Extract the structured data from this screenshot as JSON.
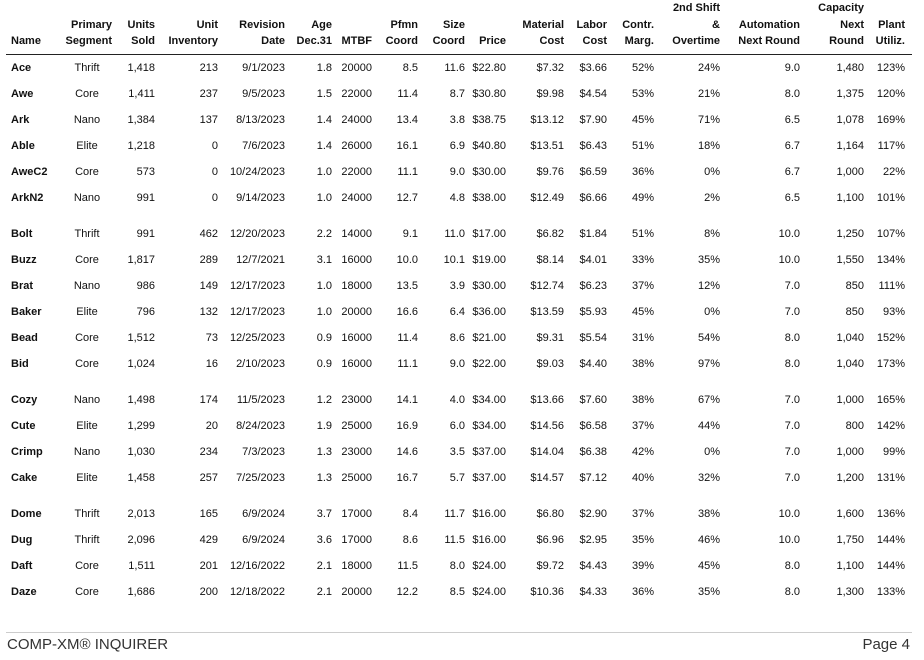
{
  "table": {
    "headers": [
      [
        "Name"
      ],
      [
        "Primary",
        "Segment"
      ],
      [
        "Units",
        "Sold"
      ],
      [
        "Unit",
        "Inventory"
      ],
      [
        "Revision",
        "Date"
      ],
      [
        "Age",
        "Dec.31"
      ],
      [
        "MTBF"
      ],
      [
        "Pfmn",
        "Coord"
      ],
      [
        "Size",
        "Coord"
      ],
      [
        "Price"
      ],
      [
        "Material",
        "Cost"
      ],
      [
        "Labor",
        "Cost"
      ],
      [
        "Contr.",
        "Marg."
      ],
      [
        "2nd Shift",
        "&",
        "Overtime"
      ],
      [
        "Automation",
        "Next Round"
      ],
      [
        "Capacity",
        "Next",
        "Round"
      ],
      [
        "Plant",
        "Utiliz."
      ]
    ],
    "groups": [
      {
        "rows": [
          [
            "Ace",
            "Thrift",
            "1,418",
            "213",
            "9/1/2023",
            "1.8",
            "20000",
            "8.5",
            "11.6",
            "$22.80",
            "$7.32",
            "$3.66",
            "52%",
            "24%",
            "9.0",
            "1,480",
            "123%"
          ],
          [
            "Awe",
            "Core",
            "1,411",
            "237",
            "9/5/2023",
            "1.5",
            "22000",
            "11.4",
            "8.7",
            "$30.80",
            "$9.98",
            "$4.54",
            "53%",
            "21%",
            "8.0",
            "1,375",
            "120%"
          ],
          [
            "Ark",
            "Nano",
            "1,384",
            "137",
            "8/13/2023",
            "1.4",
            "24000",
            "13.4",
            "3.8",
            "$38.75",
            "$13.12",
            "$7.90",
            "45%",
            "71%",
            "6.5",
            "1,078",
            "169%"
          ],
          [
            "Able",
            "Elite",
            "1,218",
            "0",
            "7/6/2023",
            "1.4",
            "26000",
            "16.1",
            "6.9",
            "$40.80",
            "$13.51",
            "$6.43",
            "51%",
            "18%",
            "6.7",
            "1,164",
            "117%"
          ],
          [
            "AweC2",
            "Core",
            "573",
            "0",
            "10/24/2023",
            "1.0",
            "22000",
            "11.1",
            "9.0",
            "$30.00",
            "$9.76",
            "$6.59",
            "36%",
            "0%",
            "6.7",
            "1,000",
            "22%"
          ],
          [
            "ArkN2",
            "Nano",
            "991",
            "0",
            "9/14/2023",
            "1.0",
            "24000",
            "12.7",
            "4.8",
            "$38.00",
            "$12.49",
            "$6.66",
            "49%",
            "2%",
            "6.5",
            "1,100",
            "101%"
          ]
        ]
      },
      {
        "rows": [
          [
            "Bolt",
            "Thrift",
            "991",
            "462",
            "12/20/2023",
            "2.2",
            "14000",
            "9.1",
            "11.0",
            "$17.00",
            "$6.82",
            "$1.84",
            "51%",
            "8%",
            "10.0",
            "1,250",
            "107%"
          ],
          [
            "Buzz",
            "Core",
            "1,817",
            "289",
            "12/7/2021",
            "3.1",
            "16000",
            "10.0",
            "10.1",
            "$19.00",
            "$8.14",
            "$4.01",
            "33%",
            "35%",
            "10.0",
            "1,550",
            "134%"
          ],
          [
            "Brat",
            "Nano",
            "986",
            "149",
            "12/17/2023",
            "1.0",
            "18000",
            "13.5",
            "3.9",
            "$30.00",
            "$12.74",
            "$6.23",
            "37%",
            "12%",
            "7.0",
            "850",
            "111%"
          ],
          [
            "Baker",
            "Elite",
            "796",
            "132",
            "12/17/2023",
            "1.0",
            "20000",
            "16.6",
            "6.4",
            "$36.00",
            "$13.59",
            "$5.93",
            "45%",
            "0%",
            "7.0",
            "850",
            "93%"
          ],
          [
            "Bead",
            "Core",
            "1,512",
            "73",
            "12/25/2023",
            "0.9",
            "16000",
            "11.4",
            "8.6",
            "$21.00",
            "$9.31",
            "$5.54",
            "31%",
            "54%",
            "8.0",
            "1,040",
            "152%"
          ],
          [
            "Bid",
            "Core",
            "1,024",
            "16",
            "2/10/2023",
            "0.9",
            "16000",
            "11.1",
            "9.0",
            "$22.00",
            "$9.03",
            "$4.40",
            "38%",
            "97%",
            "8.0",
            "1,040",
            "173%"
          ]
        ]
      },
      {
        "rows": [
          [
            "Cozy",
            "Nano",
            "1,498",
            "174",
            "11/5/2023",
            "1.2",
            "23000",
            "14.1",
            "4.0",
            "$34.00",
            "$13.66",
            "$7.60",
            "38%",
            "67%",
            "7.0",
            "1,000",
            "165%"
          ],
          [
            "Cute",
            "Elite",
            "1,299",
            "20",
            "8/24/2023",
            "1.9",
            "25000",
            "16.9",
            "6.0",
            "$34.00",
            "$14.56",
            "$6.58",
            "37%",
            "44%",
            "7.0",
            "800",
            "142%"
          ],
          [
            "Crimp",
            "Nano",
            "1,030",
            "234",
            "7/3/2023",
            "1.3",
            "23000",
            "14.6",
            "3.5",
            "$37.00",
            "$14.04",
            "$6.38",
            "42%",
            "0%",
            "7.0",
            "1,000",
            "99%"
          ],
          [
            "Cake",
            "Elite",
            "1,458",
            "257",
            "7/25/2023",
            "1.3",
            "25000",
            "16.7",
            "5.7",
            "$37.00",
            "$14.57",
            "$7.12",
            "40%",
            "32%",
            "7.0",
            "1,200",
            "131%"
          ]
        ]
      },
      {
        "rows": [
          [
            "Dome",
            "Thrift",
            "2,013",
            "165",
            "6/9/2024",
            "3.7",
            "17000",
            "8.4",
            "11.7",
            "$16.00",
            "$6.80",
            "$2.90",
            "37%",
            "38%",
            "10.0",
            "1,600",
            "136%"
          ],
          [
            "Dug",
            "Thrift",
            "2,096",
            "429",
            "6/9/2024",
            "3.6",
            "17000",
            "8.6",
            "11.5",
            "$16.00",
            "$6.96",
            "$2.95",
            "35%",
            "46%",
            "10.0",
            "1,750",
            "144%"
          ],
          [
            "Daft",
            "Core",
            "1,511",
            "201",
            "12/16/2022",
            "2.1",
            "18000",
            "11.5",
            "8.0",
            "$24.00",
            "$9.72",
            "$4.43",
            "39%",
            "45%",
            "8.0",
            "1,100",
            "144%"
          ],
          [
            "Daze",
            "Core",
            "1,686",
            "200",
            "12/18/2022",
            "2.1",
            "20000",
            "12.2",
            "8.5",
            "$24.00",
            "$10.36",
            "$4.33",
            "36%",
            "35%",
            "8.0",
            "1,300",
            "133%"
          ]
        ]
      }
    ]
  },
  "footer": {
    "left": "COMP-XM® INQUIRER",
    "right": "Page 4"
  }
}
